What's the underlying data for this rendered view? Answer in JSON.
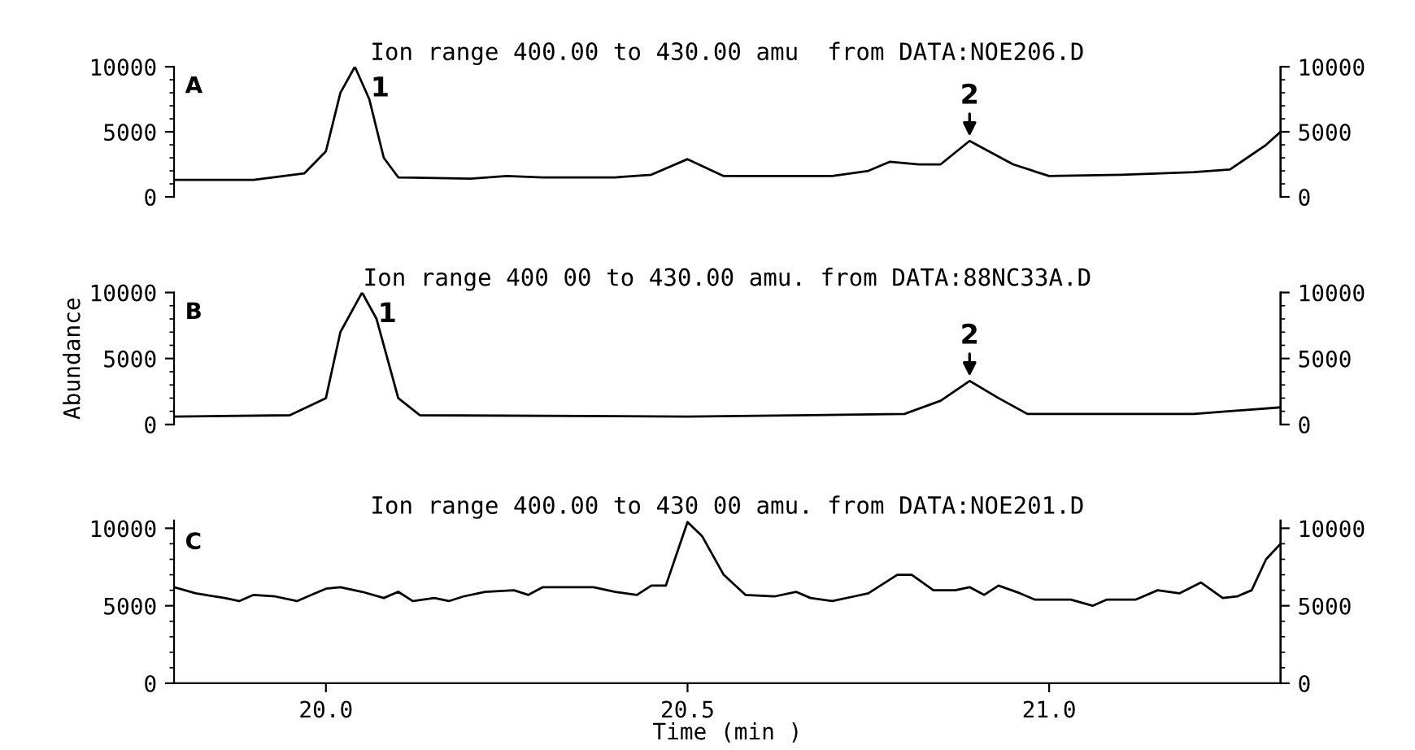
{
  "chart_data": [
    {
      "type": "line",
      "title": "Ion range 400.00 to 430.00 amu  from DATA:NOE206.D",
      "series": [
        {
          "color": "#000000",
          "x": [
            19.79,
            19.9,
            19.97,
            20.0,
            20.02,
            20.04,
            20.06,
            20.08,
            20.1,
            20.2,
            20.25,
            20.3,
            20.4,
            20.45,
            20.5,
            20.55,
            20.7,
            20.75,
            20.78,
            20.82,
            20.85,
            20.89,
            20.95,
            21.0,
            21.1,
            21.2,
            21.25,
            21.3,
            21.32
          ],
          "values": [
            1300,
            1300,
            1800,
            3500,
            8000,
            10000,
            7500,
            3000,
            1500,
            1400,
            1600,
            1500,
            1500,
            1700,
            2900,
            1600,
            1600,
            2000,
            2700,
            2500,
            2500,
            4300,
            2500,
            1600,
            1700,
            1900,
            2100,
            4000,
            5000
          ]
        }
      ],
      "xlim": [
        19.79,
        21.32
      ],
      "ylim": [
        0,
        10000
      ],
      "yticks": [
        0,
        5000,
        10000
      ],
      "y2lim": [
        0,
        10000
      ],
      "y2ticks": [
        0,
        5000,
        10000
      ],
      "tick_labels": "y",
      "annotations": [
        "A",
        {
          "text": "1",
          "x": 20.04,
          "y": 10000
        },
        {
          "text": "2",
          "x": 20.89,
          "y": 4300
        }
      ]
    },
    {
      "type": "line",
      "title": "Ion range 400 00 to 430.00 amu. from DATA:88NC33A.D",
      "ylabel": "Abundance",
      "series": [
        {
          "color": "#000000",
          "x": [
            19.79,
            19.95,
            20.0,
            20.02,
            20.05,
            20.07,
            20.1,
            20.13,
            20.5,
            20.8,
            20.85,
            20.89,
            20.93,
            20.97,
            21.2,
            21.32
          ],
          "values": [
            600,
            700,
            2000,
            7000,
            10000,
            8000,
            2000,
            700,
            600,
            800,
            1800,
            3300,
            2000,
            800,
            800,
            1300
          ]
        }
      ],
      "xlim": [
        19.79,
        21.32
      ],
      "ylim": [
        0,
        10000
      ],
      "yticks": [
        0,
        5000,
        10000
      ],
      "y2lim": [
        0,
        10000
      ],
      "y2ticks": [
        0,
        5000,
        10000
      ],
      "tick_labels": "y",
      "annotations": [
        "B",
        {
          "text": "1",
          "x": 20.05,
          "y": 10000
        },
        {
          "text": "2",
          "x": 20.89,
          "y": 3300
        }
      ]
    },
    {
      "type": "line",
      "title": "Ion range 400.00 to 430 00 amu. from DATA:NOE201.D",
      "xlabel": "Time (min )",
      "series": [
        {
          "color": "#000000",
          "x": [
            19.79,
            19.82,
            19.86,
            19.88,
            19.9,
            19.93,
            19.96,
            19.98,
            20.0,
            20.02,
            20.05,
            20.08,
            20.1,
            20.12,
            20.15,
            20.17,
            20.19,
            20.22,
            20.26,
            20.28,
            20.3,
            20.37,
            20.4,
            20.43,
            20.45,
            20.47,
            20.5,
            20.52,
            20.55,
            20.58,
            20.62,
            20.65,
            20.67,
            20.7,
            20.73,
            20.75,
            20.79,
            20.81,
            20.84,
            20.87,
            20.89,
            20.91,
            20.93,
            20.96,
            20.98,
            21.03,
            21.06,
            21.08,
            21.12,
            21.15,
            21.18,
            21.21,
            21.24,
            21.26,
            21.28,
            21.3,
            21.32
          ],
          "values": [
            6200,
            5800,
            5500,
            5300,
            5700,
            5600,
            5300,
            5700,
            6100,
            6200,
            5900,
            5500,
            5900,
            5300,
            5500,
            5300,
            5600,
            5900,
            6000,
            5700,
            6200,
            6200,
            5900,
            5700,
            6300,
            6300,
            10400,
            9500,
            7000,
            5700,
            5600,
            5900,
            5500,
            5300,
            5600,
            5800,
            7000,
            7000,
            6000,
            6000,
            6200,
            5700,
            6300,
            5800,
            5400,
            5400,
            5000,
            5400,
            5400,
            6000,
            5800,
            6500,
            5500,
            5600,
            6000,
            8000,
            9000
          ]
        }
      ],
      "xlim": [
        19.79,
        21.32
      ],
      "xticks": [
        {
          "value": 20.0,
          "label": "20.0"
        },
        20.5,
        {
          "value": 21.0,
          "label": "21.0"
        }
      ],
      "ylim": [
        0,
        10500
      ],
      "yticks": [
        0,
        5000,
        10000
      ],
      "y2lim": [
        0,
        10500
      ],
      "y2ticks": [
        0,
        5000,
        10000
      ],
      "annotations": [
        "C"
      ]
    }
  ]
}
